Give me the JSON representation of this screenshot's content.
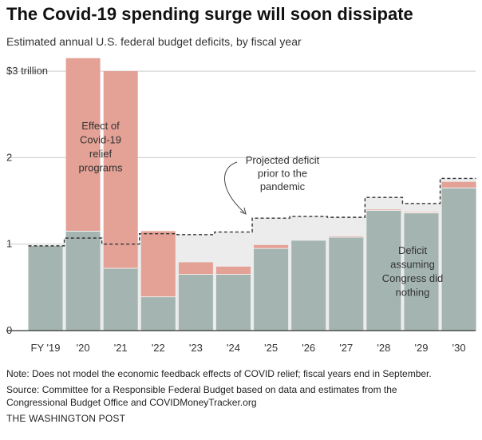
{
  "title": "The Covid-19 spending surge will soon dissipate",
  "subtitle": "Estimated annual U.S. federal budget deficits, by fiscal year",
  "note": "Note: Does not model the economic feedback effects of COVID relief; fiscal years end in September.",
  "source": "Source:  Committee for a Responsible Federal Budget based on data and estimates from the Congressional Budget Office and COVIDMoneyTracker.org",
  "credit": "THE WASHINGTON POST",
  "colors": {
    "baseline_deficit": "#a3b4b1",
    "covid_relief": "#e4a195",
    "pre_pandemic_area": "#ececec",
    "pre_pandemic_line": "#333333",
    "grid": "#cccccc"
  },
  "chart_data": {
    "type": "bar",
    "stacked": true,
    "categories": [
      "FY '19",
      "'20",
      "'21",
      "'22",
      "'23",
      "'24",
      "'25",
      "'26",
      "'27",
      "'28",
      "'29",
      "'30"
    ],
    "y_tick_labels": [
      "0",
      "1",
      "2",
      "$3 trillion"
    ],
    "y_ticks": [
      0,
      1,
      2,
      3
    ],
    "ylim": [
      0,
      3.15
    ],
    "grid": true,
    "series": [
      {
        "name": "Deficit assuming Congress did nothing",
        "values": [
          0.98,
          1.15,
          0.72,
          0.39,
          0.65,
          0.65,
          0.95,
          1.04,
          1.08,
          1.39,
          1.36,
          1.65
        ]
      },
      {
        "name": "Effect of Covid-19 relief programs",
        "values": [
          0,
          2.0,
          2.28,
          0.76,
          0.14,
          0.09,
          0.04,
          0,
          0.01,
          0.01,
          0.01,
          0.07
        ]
      }
    ],
    "pre_pandemic_projection": {
      "name": "Projected deficit prior to the pandemic",
      "values": [
        0.98,
        1.07,
        1.0,
        1.12,
        1.11,
        1.14,
        1.3,
        1.32,
        1.31,
        1.54,
        1.47,
        1.76
      ]
    },
    "annotations": {
      "covid_relief": [
        "Effect of",
        "Covid-19",
        "relief",
        "programs"
      ],
      "pre_pandemic": [
        "Projected deficit",
        "prior to the",
        "pandemic"
      ],
      "baseline": [
        "Deficit",
        "assuming",
        "Congress did",
        "nothing"
      ]
    }
  }
}
